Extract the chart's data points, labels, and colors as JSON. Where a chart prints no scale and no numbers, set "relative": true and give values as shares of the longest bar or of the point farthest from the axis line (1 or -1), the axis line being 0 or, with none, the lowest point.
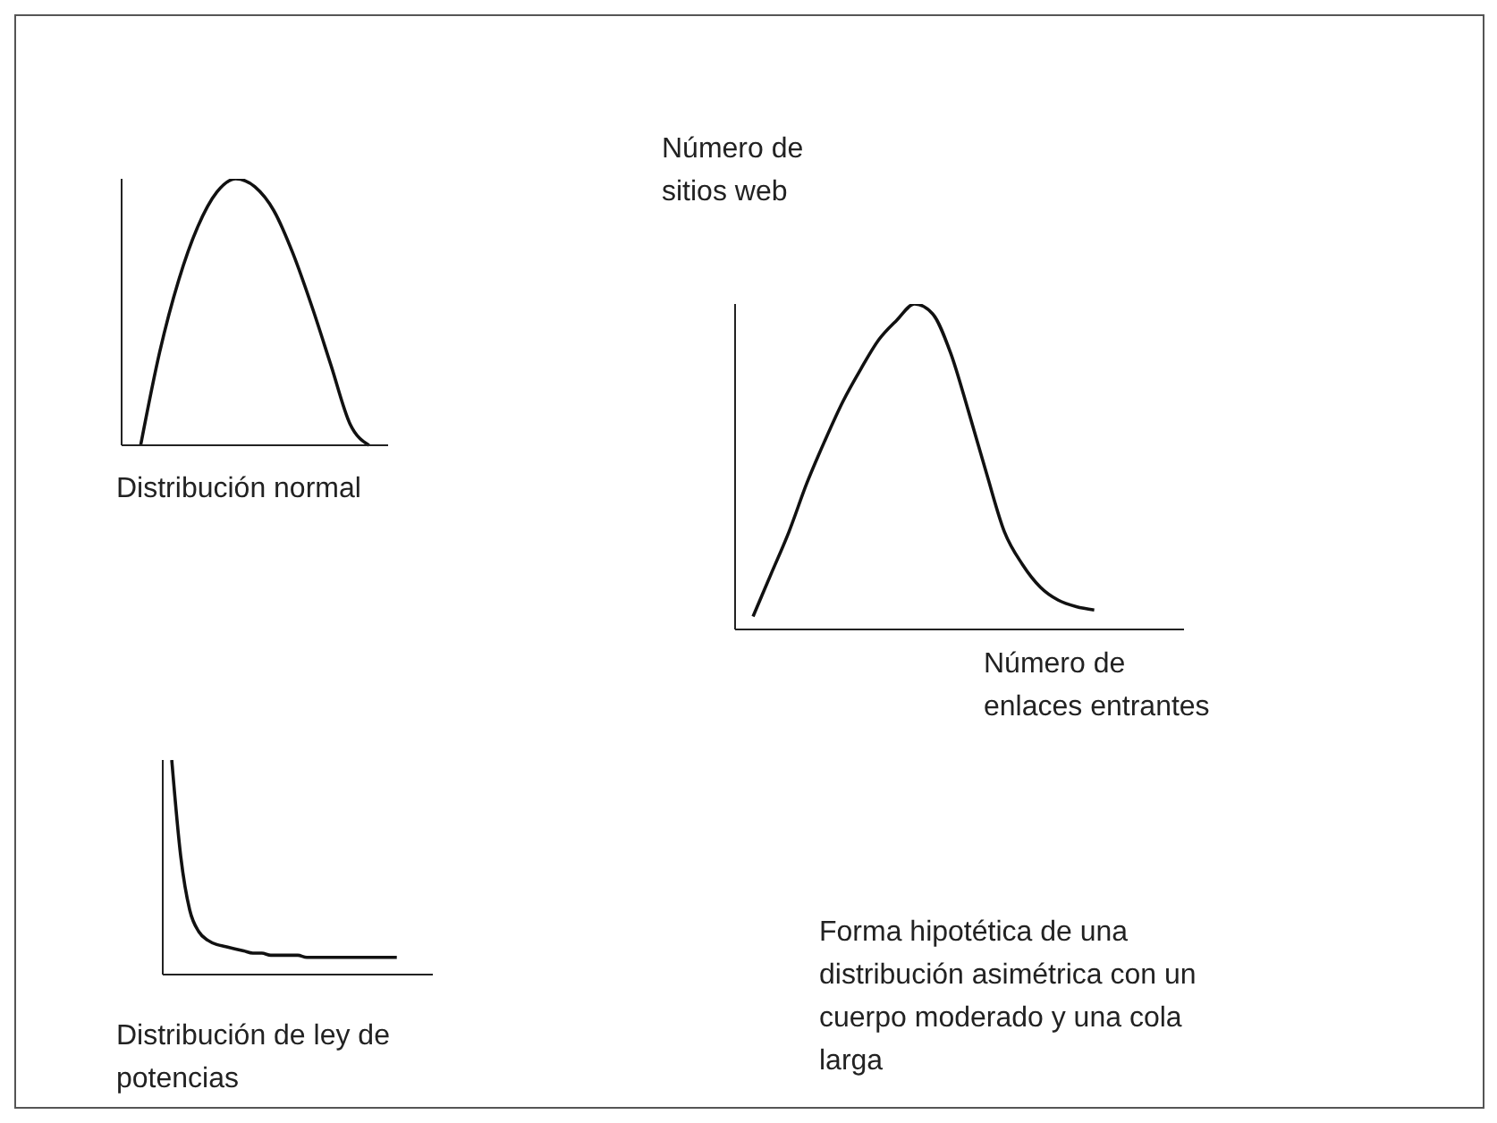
{
  "chart_data": [
    {
      "type": "line",
      "relative": true,
      "tick_labels": false,
      "xlabel": "Distribución normal",
      "color": "#111111",
      "categories": [
        null,
        null,
        null,
        null,
        null,
        null,
        null,
        null,
        null,
        null,
        null,
        null,
        null,
        null,
        null
      ],
      "values": [
        null,
        0,
        0.35,
        0.62,
        0.82,
        0.95,
        1.0,
        0.97,
        0.88,
        0.72,
        0.52,
        0.3,
        0.08,
        0,
        null
      ]
    },
    {
      "type": "line",
      "relative": true,
      "tick_labels": false,
      "xlabel": "Distribución de ley de potencias",
      "color": "#111111",
      "categories": [
        null,
        null,
        null,
        null,
        null,
        null,
        null,
        null,
        null,
        null,
        null,
        null,
        null,
        null,
        null,
        null,
        null,
        null,
        null,
        null,
        null,
        null,
        null,
        null,
        null,
        null,
        null,
        null,
        null,
        null,
        null
      ],
      "values": [
        null,
        1.0,
        0.55,
        0.3,
        0.2,
        0.16,
        0.14,
        0.13,
        0.12,
        0.11,
        0.1,
        0.1,
        0.09,
        0.09,
        0.09,
        0.09,
        0.08,
        0.08,
        0.08,
        0.08,
        0.08,
        0.08,
        0.08,
        0.08,
        0.08,
        0.08,
        0.08,
        null,
        null,
        null,
        null
      ]
    },
    {
      "type": "line",
      "relative": true,
      "tick_labels": false,
      "ylabel": "Número de sitios web",
      "xlabel": "Número de enlaces entrantes",
      "color": "#111111",
      "annotations": [
        "Forma hipotética de una distribución asimétrica con un cuerpo moderado y una cola larga"
      ],
      "categories": [
        null,
        null,
        null,
        null,
        null,
        null,
        null,
        null,
        null,
        null,
        null,
        null,
        null,
        null,
        null,
        null,
        null,
        null,
        null,
        null,
        null,
        null,
        null,
        null,
        null,
        null
      ],
      "values": [
        null,
        0.04,
        0.17,
        0.3,
        0.45,
        0.58,
        0.7,
        0.8,
        0.89,
        0.95,
        1.0,
        0.97,
        0.85,
        0.67,
        0.48,
        0.3,
        0.2,
        0.13,
        0.09,
        0.07,
        0.06,
        null,
        null,
        null,
        null,
        null
      ]
    }
  ]
}
